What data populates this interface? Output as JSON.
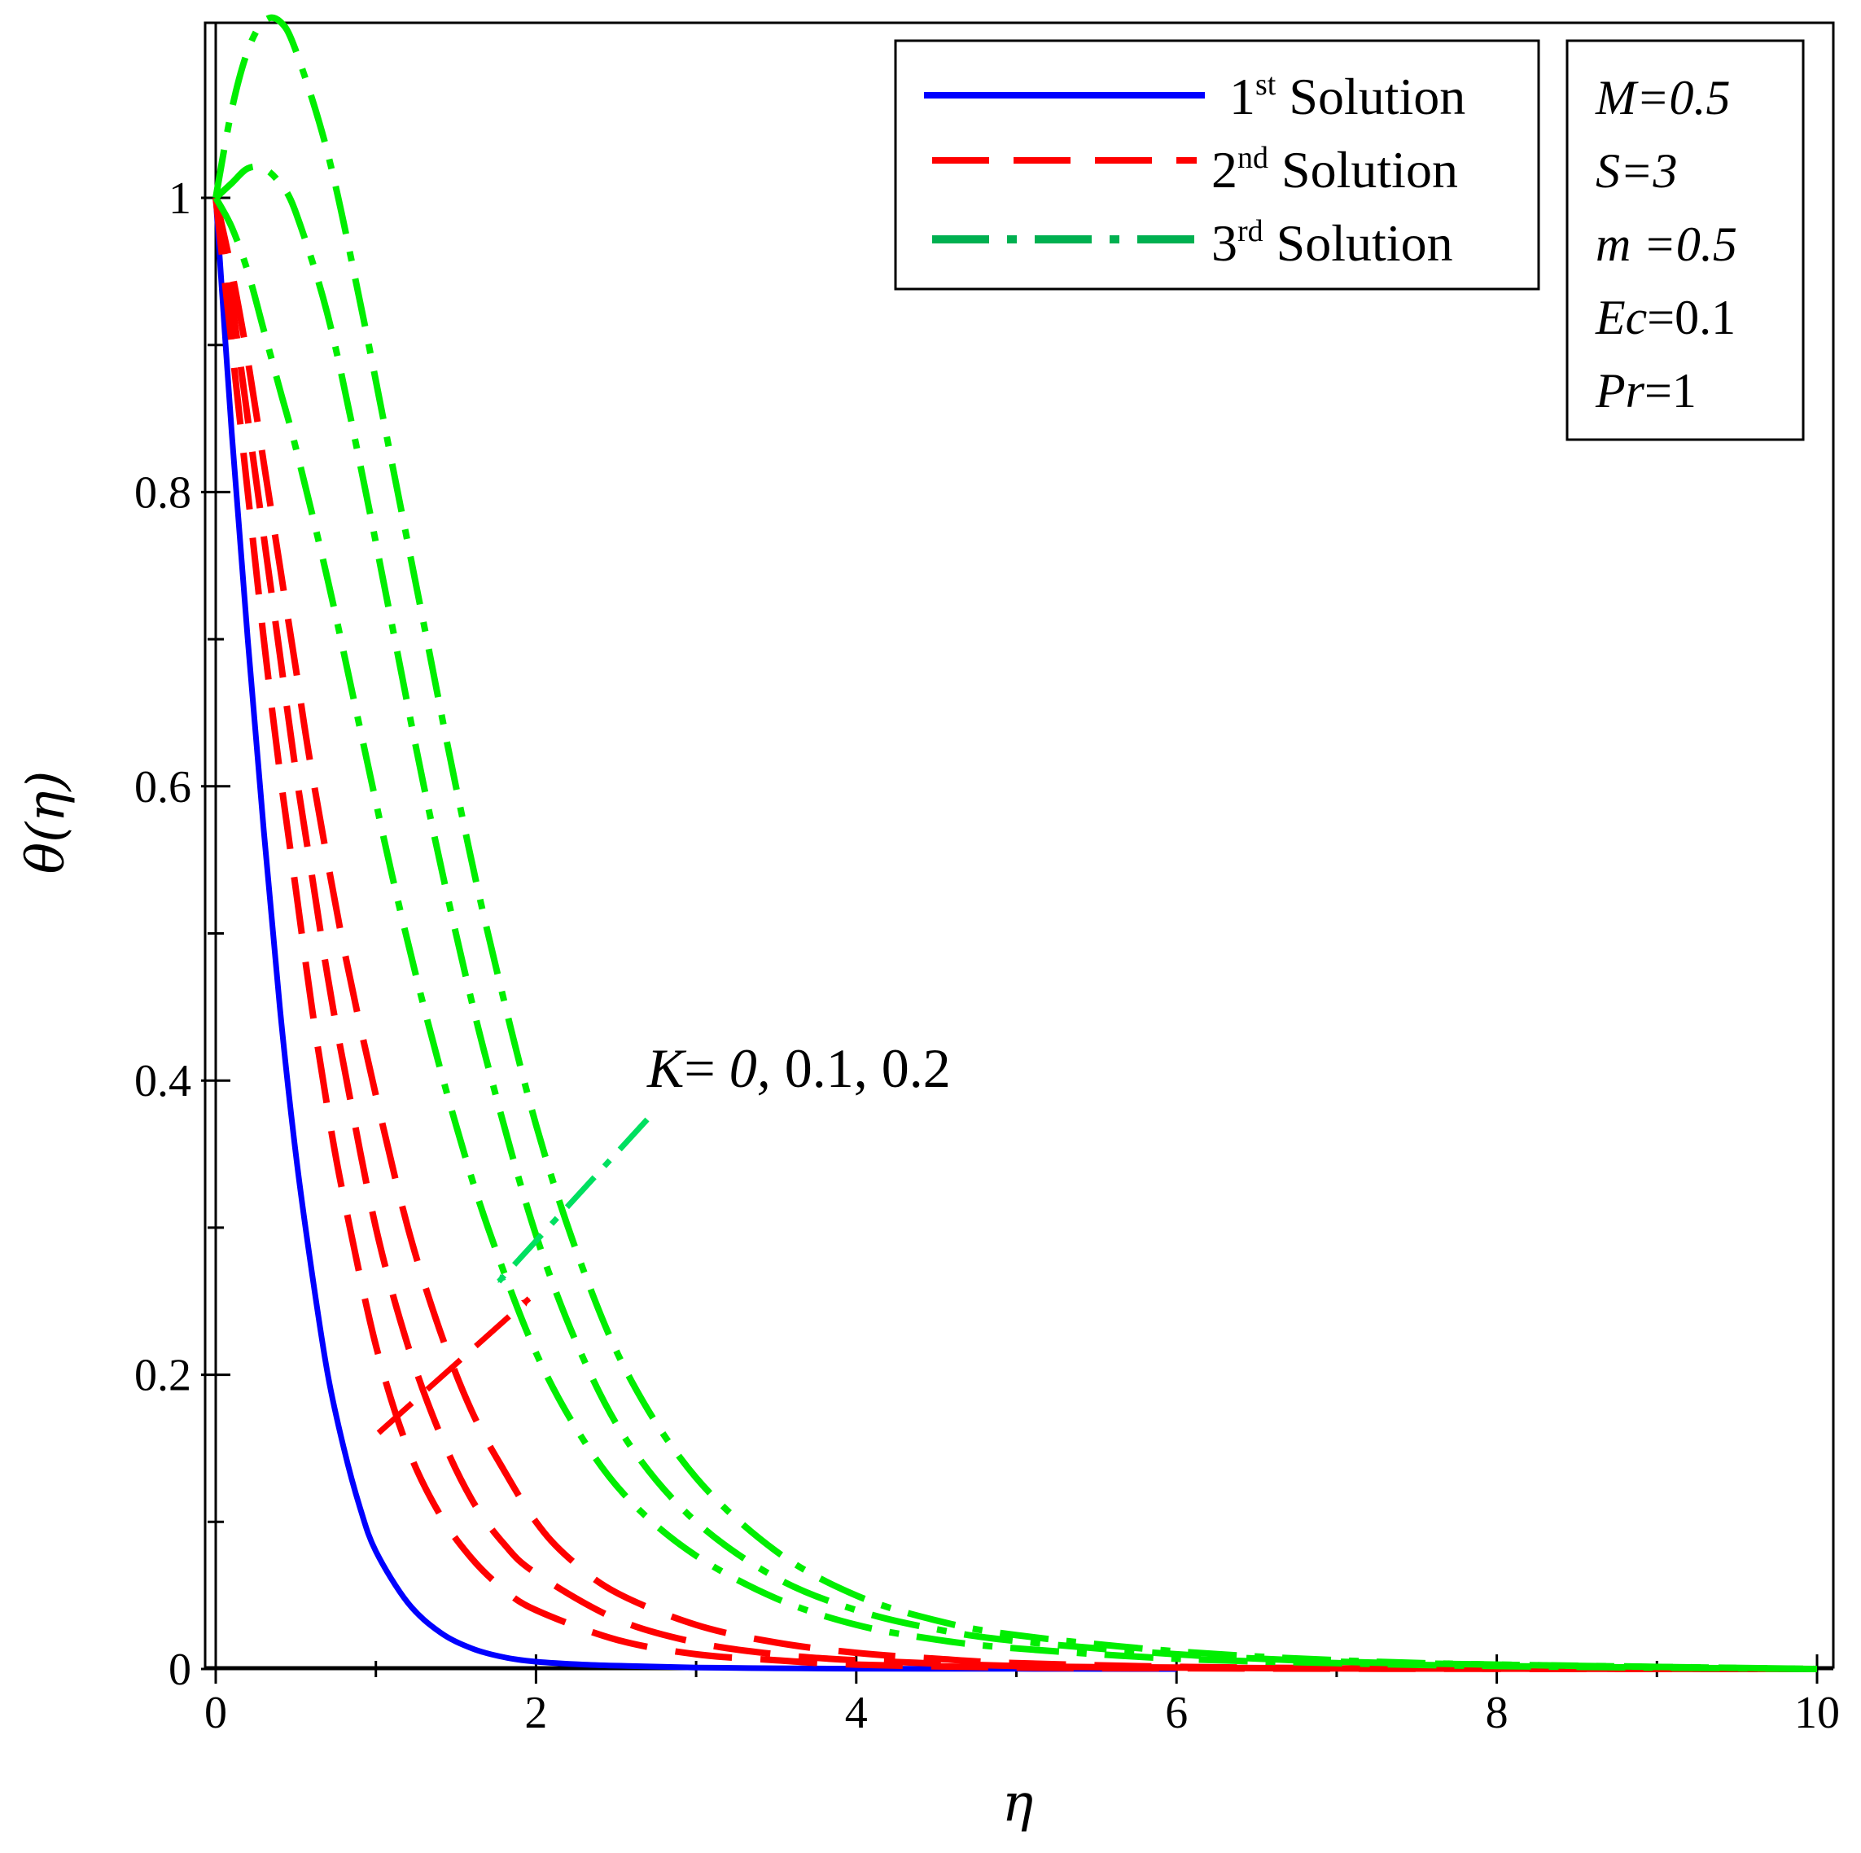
{
  "chart_data": {
    "type": "line",
    "xlabel": "η",
    "ylabel": "θ(η)",
    "xlim": [
      0,
      10
    ],
    "ylim": [
      0,
      1.12
    ],
    "xticks": [
      0,
      2,
      4,
      6,
      8,
      10
    ],
    "yticks": [
      0,
      0.2,
      0.4,
      0.6,
      0.8,
      1
    ],
    "xtick_labels": [
      "0",
      "2",
      "4",
      "6",
      "8",
      "10"
    ],
    "ytick_labels": [
      "0",
      "0.2",
      "0.4",
      "0.6",
      "0.8",
      "1"
    ],
    "grid": false,
    "legend_position": "top-right",
    "legend": [
      {
        "num": "1",
        "sup": "st",
        "text": " Solution",
        "color": "#0000ff",
        "style": "solid"
      },
      {
        "num": "2",
        "sup": "nd",
        "text": " Solution",
        "color": "#ff0000",
        "style": "dash"
      },
      {
        "num": "3",
        "sup": "rd",
        "text": " Solution",
        "color": "#00b050",
        "style": "dashdot"
      }
    ],
    "parameters": [
      {
        "name": "M",
        "eq": "=0.5",
        "italic_value": true
      },
      {
        "name": "S",
        "eq": "=3",
        "italic_value": true
      },
      {
        "name": "m",
        "eq": " =0.5",
        "italic_value": true
      },
      {
        "name": "Ec",
        "eq": "=0.1",
        "italic_value": false
      },
      {
        "name": "Pr",
        "eq": "=1",
        "italic_value": false
      }
    ],
    "annotation": {
      "k": "K",
      "eq": "= ",
      "v0": "0,",
      "rest": " 0.1, 0.2"
    },
    "series": [
      {
        "name": "1st Solution",
        "color": "#0000ff",
        "style": "solid",
        "x": [
          0,
          0.1,
          0.2,
          0.3,
          0.4,
          0.5,
          0.6,
          0.7,
          0.8,
          0.9,
          1.0,
          1.2,
          1.4,
          1.6,
          1.8,
          2.0,
          2.3,
          2.6,
          3.0,
          3.5,
          4.0,
          5.0,
          6.0
        ],
        "y": [
          1.0,
          0.84,
          0.7,
          0.57,
          0.45,
          0.35,
          0.27,
          0.2,
          0.15,
          0.11,
          0.08,
          0.045,
          0.025,
          0.014,
          0.008,
          0.005,
          0.003,
          0.002,
          0.001,
          0.0005,
          0.0002,
          0.0001,
          0.0
        ]
      },
      {
        "name": "2nd Solution (K=0)",
        "color": "#ff0000",
        "style": "dash",
        "x": [
          0,
          0.1,
          0.2,
          0.3,
          0.4,
          0.5,
          0.6,
          0.7,
          0.8,
          1.0,
          1.2,
          1.4,
          1.6,
          1.8,
          2.0,
          2.5,
          3.0,
          3.5,
          4.0,
          5.0,
          6.0,
          7.0,
          8.0,
          10.0
        ],
        "y": [
          1.0,
          0.9,
          0.8,
          0.7,
          0.61,
          0.53,
          0.45,
          0.38,
          0.32,
          0.22,
          0.15,
          0.105,
          0.075,
          0.054,
          0.04,
          0.02,
          0.01,
          0.006,
          0.003,
          0.001,
          0.0005,
          0.0002,
          0.0001,
          0.0
        ]
      },
      {
        "name": "2nd Solution (K=0.1)",
        "color": "#ff0000",
        "style": "dash",
        "x": [
          0,
          0.1,
          0.2,
          0.3,
          0.4,
          0.5,
          0.6,
          0.7,
          0.8,
          1.0,
          1.2,
          1.4,
          1.6,
          1.8,
          2.0,
          2.5,
          3.0,
          3.5,
          4.0,
          5.0,
          6.0,
          7.0,
          8.0,
          10.0
        ],
        "y": [
          1.0,
          0.93,
          0.85,
          0.77,
          0.69,
          0.61,
          0.54,
          0.47,
          0.41,
          0.3,
          0.22,
          0.16,
          0.115,
          0.085,
          0.065,
          0.034,
          0.018,
          0.01,
          0.006,
          0.002,
          0.001,
          0.0004,
          0.0002,
          0.0
        ]
      },
      {
        "name": "2nd Solution (K=0.2)",
        "color": "#ff0000",
        "style": "dash",
        "x": [
          0,
          0.1,
          0.2,
          0.3,
          0.4,
          0.5,
          0.6,
          0.8,
          1.0,
          1.2,
          1.4,
          1.6,
          1.8,
          2.0,
          2.2,
          2.5,
          3.0,
          3.5,
          4.0,
          4.5,
          5.0,
          6.0,
          7.0,
          8.0,
          10.0
        ],
        "y": [
          1.0,
          0.95,
          0.89,
          0.82,
          0.75,
          0.68,
          0.61,
          0.49,
          0.39,
          0.3,
          0.23,
          0.175,
          0.135,
          0.1,
          0.076,
          0.052,
          0.03,
          0.018,
          0.011,
          0.007,
          0.004,
          0.0015,
          0.0006,
          0.0003,
          0.0
        ]
      },
      {
        "name": "3rd Solution (K=0)",
        "color": "#00ee00",
        "style": "dashdot",
        "x": [
          0,
          0.1,
          0.2,
          0.3,
          0.4,
          0.5,
          0.7,
          0.9,
          1.1,
          1.3,
          1.5,
          1.7,
          2.0,
          2.3,
          2.6,
          3.0,
          3.5,
          4.0,
          4.5,
          5.0,
          6.0,
          7.0,
          8.0,
          10.0
        ],
        "y": [
          1.0,
          0.98,
          0.95,
          0.91,
          0.87,
          0.83,
          0.74,
          0.64,
          0.54,
          0.45,
          0.37,
          0.3,
          0.215,
          0.155,
          0.113,
          0.077,
          0.048,
          0.03,
          0.02,
          0.014,
          0.007,
          0.004,
          0.002,
          0.0
        ]
      },
      {
        "name": "3rd Solution (K=0.1)",
        "color": "#00ee00",
        "style": "dashdot",
        "x": [
          0,
          0.1,
          0.2,
          0.3,
          0.4,
          0.5,
          0.7,
          0.9,
          1.1,
          1.3,
          1.5,
          1.7,
          2.0,
          2.3,
          2.6,
          3.0,
          3.5,
          4.0,
          4.5,
          5.0,
          6.0,
          7.0,
          8.0,
          10.0
        ],
        "y": [
          1.0,
          1.01,
          1.02,
          1.02,
          1.01,
          0.99,
          0.92,
          0.82,
          0.71,
          0.6,
          0.5,
          0.41,
          0.295,
          0.21,
          0.15,
          0.1,
          0.062,
          0.04,
          0.027,
          0.019,
          0.01,
          0.005,
          0.003,
          0.0
        ]
      },
      {
        "name": "3rd Solution (K=0.2)",
        "color": "#00ee00",
        "style": "dashdot",
        "x": [
          0,
          0.1,
          0.2,
          0.3,
          0.4,
          0.5,
          0.7,
          0.9,
          1.1,
          1.3,
          1.5,
          1.7,
          2.0,
          2.3,
          2.6,
          3.0,
          3.5,
          4.0,
          4.5,
          5.0,
          6.0,
          7.0,
          8.0,
          10.0
        ],
        "y": [
          1.0,
          1.06,
          1.1,
          1.12,
          1.12,
          1.1,
          1.03,
          0.93,
          0.82,
          0.71,
          0.6,
          0.5,
          0.37,
          0.27,
          0.195,
          0.13,
          0.08,
          0.05,
          0.033,
          0.023,
          0.012,
          0.006,
          0.003,
          0.0
        ]
      }
    ]
  }
}
